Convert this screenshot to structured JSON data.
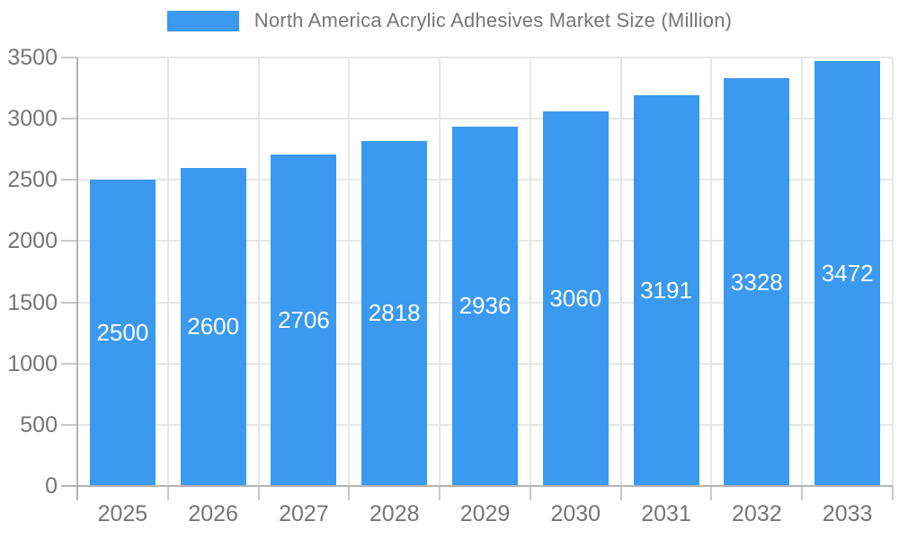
{
  "legend": {
    "label": "North America Acrylic Adhesives Market Size (Million)"
  },
  "colors": {
    "bar": "#3B99F0",
    "grid": "#E6E6E6",
    "axis": "#B3B3B3",
    "tick": "#C9C9C9",
    "text": "#757575",
    "value_label": "#FFFFFF",
    "background": "#FFFFFF"
  },
  "chart_data": {
    "type": "bar",
    "title": "North America Acrylic Adhesives Market Size (Million)",
    "categories": [
      "2025",
      "2026",
      "2027",
      "2028",
      "2029",
      "2030",
      "2031",
      "2032",
      "2033"
    ],
    "values": [
      2500,
      2600,
      2706,
      2818,
      2936,
      3060,
      3191,
      3328,
      3472
    ],
    "series": [
      {
        "name": "North America Acrylic Adhesives Market Size (Million)",
        "values": [
          2500,
          2600,
          2706,
          2818,
          2936,
          3060,
          3191,
          3328,
          3472
        ]
      }
    ],
    "xlabel": "",
    "ylabel": "",
    "ylim": [
      0,
      3500
    ],
    "ytick_step": 500,
    "yticks": [
      "0",
      "500",
      "1000",
      "1500",
      "2000",
      "2500",
      "3000",
      "3500"
    ],
    "grid": true,
    "legend_position": "top",
    "value_labels": "inside-center"
  }
}
